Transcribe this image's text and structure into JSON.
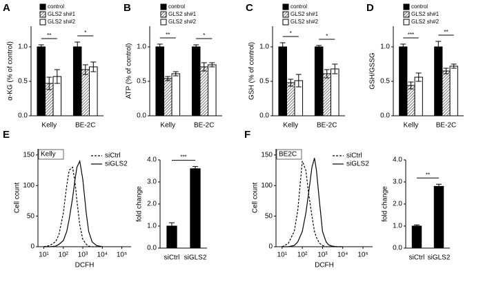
{
  "chart_data": [
    {
      "type": "bar",
      "panel_label": "A",
      "ylabel": "α-KG (% of control)",
      "categories": [
        "Kelly",
        "BE-2C"
      ],
      "series": [
        {
          "name": "control",
          "color": "#000000",
          "values": [
            1.0,
            1.0
          ],
          "errors": [
            0.03,
            0.07
          ]
        },
        {
          "name": "GLS2 sh#1",
          "color": "#808080",
          "hatched": true,
          "values": [
            0.47,
            0.67
          ],
          "errors": [
            0.09,
            0.07
          ]
        },
        {
          "name": "GLS2 sh#2",
          "color": "#ffffff",
          "values": [
            0.57,
            0.71
          ],
          "errors": [
            0.1,
            0.07
          ]
        }
      ],
      "ylim": [
        0,
        1.3
      ],
      "yticks": [
        {
          "value": 0,
          "label": "0.0"
        },
        0.5,
        {
          "value": 1,
          "label": "1.0"
        }
      ],
      "significance": [
        "**",
        "*"
      ]
    },
    {
      "type": "bar",
      "panel_label": "B",
      "ylabel": "ATP (% of control)",
      "categories": [
        "Kelly",
        "BE-2C"
      ],
      "series": [
        {
          "name": "control",
          "color": "#000000",
          "values": [
            1.0,
            1.0
          ],
          "errors": [
            0.04,
            0.03
          ]
        },
        {
          "name": "GLS2 sh#1",
          "color": "#808080",
          "hatched": true,
          "values": [
            0.54,
            0.71
          ],
          "errors": [
            0.03,
            0.06
          ]
        },
        {
          "name": "GLS2 sh#2",
          "color": "#ffffff",
          "values": [
            0.61,
            0.74
          ],
          "errors": [
            0.03,
            0.03
          ]
        }
      ],
      "ylim": [
        0,
        1.3
      ],
      "yticks": [
        {
          "value": 0,
          "label": "0.0"
        },
        0.5,
        {
          "value": 1,
          "label": "1.0"
        }
      ],
      "significance": [
        "**",
        "*"
      ]
    },
    {
      "type": "bar",
      "panel_label": "C",
      "ylabel": "GSH (% of control)",
      "categories": [
        "Kelly",
        "BE-2C"
      ],
      "series": [
        {
          "name": "control",
          "color": "#000000",
          "values": [
            1.0,
            1.0
          ],
          "errors": [
            0.06,
            0.02
          ]
        },
        {
          "name": "GLS2 sh#1",
          "color": "#808080",
          "hatched": true,
          "values": [
            0.48,
            0.61
          ],
          "errors": [
            0.05,
            0.06
          ]
        },
        {
          "name": "GLS2 sh#2",
          "color": "#ffffff",
          "values": [
            0.51,
            0.68
          ],
          "errors": [
            0.09,
            0.07
          ]
        }
      ],
      "ylim": [
        0,
        1.3
      ],
      "yticks": [
        {
          "value": 0,
          "label": "0.0"
        },
        0.5,
        {
          "value": 1,
          "label": "1.0"
        }
      ],
      "significance": [
        "*",
        "*"
      ]
    },
    {
      "type": "bar",
      "panel_label": "D",
      "ylabel": "GSH/GSSG",
      "categories": [
        "Kelly",
        "BE-2C"
      ],
      "series": [
        {
          "name": "control",
          "color": "#000000",
          "values": [
            1.0,
            1.0
          ],
          "errors": [
            0.04,
            0.08
          ]
        },
        {
          "name": "GLS2 sh#1",
          "color": "#808080",
          "hatched": true,
          "values": [
            0.44,
            0.65
          ],
          "errors": [
            0.05,
            0.04
          ]
        },
        {
          "name": "GLS2 sh#2",
          "color": "#ffffff",
          "values": [
            0.56,
            0.72
          ],
          "errors": [
            0.06,
            0.03
          ]
        }
      ],
      "ylim": [
        0,
        1.3
      ],
      "yticks": [
        {
          "value": 0,
          "label": "0.0"
        },
        0.5,
        {
          "value": 1,
          "label": "1.0"
        }
      ],
      "significance": [
        "***",
        "**"
      ]
    },
    {
      "type": "line",
      "panel_label": "E",
      "inset_label": "Kelly",
      "xlabel": "DCFH",
      "ylabel": "Cell count",
      "xlog": true,
      "x": [
        10,
        20,
        40,
        60,
        100,
        150,
        200,
        300,
        400,
        500,
        700,
        1000,
        1500,
        2000,
        3000,
        5000,
        10000
      ],
      "series": [
        {
          "name": "siCtrl",
          "color": "#000000",
          "dashed": true,
          "values": [
            0,
            2,
            8,
            20,
            55,
            100,
            125,
            130,
            105,
            75,
            35,
            12,
            4,
            1,
            0,
            0,
            0
          ]
        },
        {
          "name": "siGLS2",
          "color": "#000000",
          "values": [
            0,
            0,
            1,
            4,
            10,
            25,
            45,
            80,
            110,
            130,
            140,
            110,
            55,
            25,
            8,
            2,
            0
          ]
        }
      ],
      "xlim": [
        5,
        300000
      ],
      "xticks": [
        {
          "value": 10,
          "label": "10¹"
        },
        {
          "value": 100,
          "label": "10²"
        },
        {
          "value": 1000,
          "label": "10³"
        },
        {
          "value": 10000,
          "label": "10⁴"
        },
        {
          "value": 100000,
          "label": "10⁵"
        }
      ],
      "ylim": [
        0,
        160
      ],
      "yticks": [
        0,
        50,
        100,
        150
      ]
    },
    {
      "type": "bar",
      "ylabel": "fold change",
      "categories": [
        "siCtrl",
        "siGLS2"
      ],
      "series": [
        {
          "color": "#000000",
          "values": [
            1.0,
            3.6
          ],
          "errors": [
            0.15,
            0.1
          ]
        }
      ],
      "ylim": [
        0,
        4
      ],
      "yticks": [
        {
          "value": 0,
          "label": "0.0"
        },
        {
          "value": 1,
          "label": "1.0"
        },
        {
          "value": 2,
          "label": "2.0"
        },
        {
          "value": 3,
          "label": "3.0"
        },
        {
          "value": 4,
          "label": "4.0"
        }
      ],
      "significance": "***"
    },
    {
      "type": "line",
      "panel_label": "F",
      "inset_label": "BE2C",
      "xlabel": "DCFH",
      "ylabel": "Cell count",
      "xlog": true,
      "x": [
        10,
        20,
        40,
        60,
        100,
        150,
        200,
        300,
        400,
        500,
        700,
        1000,
        1500,
        2000,
        3000,
        5000,
        10000
      ],
      "series": [
        {
          "name": "siCtrl",
          "color": "#000000",
          "dashed": true,
          "values": [
            0,
            5,
            25,
            60,
            140,
            125,
            90,
            50,
            25,
            15,
            6,
            2,
            0,
            0,
            0,
            0,
            0
          ]
        },
        {
          "name": "siGLS2",
          "color": "#000000",
          "values": [
            0,
            0,
            2,
            8,
            25,
            55,
            85,
            130,
            145,
            125,
            75,
            25,
            8,
            3,
            1,
            0,
            0
          ]
        }
      ],
      "xlim": [
        5,
        300000
      ],
      "xticks": [
        {
          "value": 10,
          "label": "10¹"
        },
        {
          "value": 100,
          "label": "10²"
        },
        {
          "value": 1000,
          "label": "10³"
        },
        {
          "value": 10000,
          "label": "10⁴"
        },
        {
          "value": 100000,
          "label": "10⁵"
        }
      ],
      "ylim": [
        0,
        160
      ],
      "yticks": [
        0,
        50,
        100,
        150
      ]
    },
    {
      "type": "bar",
      "ylabel": "fold change",
      "categories": [
        "siCtrl",
        "siGLS2"
      ],
      "series": [
        {
          "color": "#000000",
          "values": [
            1.0,
            2.8
          ],
          "errors": [
            0.05,
            0.1
          ]
        }
      ],
      "ylim": [
        0,
        4
      ],
      "yticks": [
        {
          "value": 0,
          "label": "0.0"
        },
        {
          "value": 1,
          "label": "1.0"
        },
        {
          "value": 2,
          "label": "2.0"
        },
        {
          "value": 3,
          "label": "3.0"
        },
        {
          "value": 4,
          "label": "4.0"
        }
      ],
      "significance": "**"
    }
  ]
}
